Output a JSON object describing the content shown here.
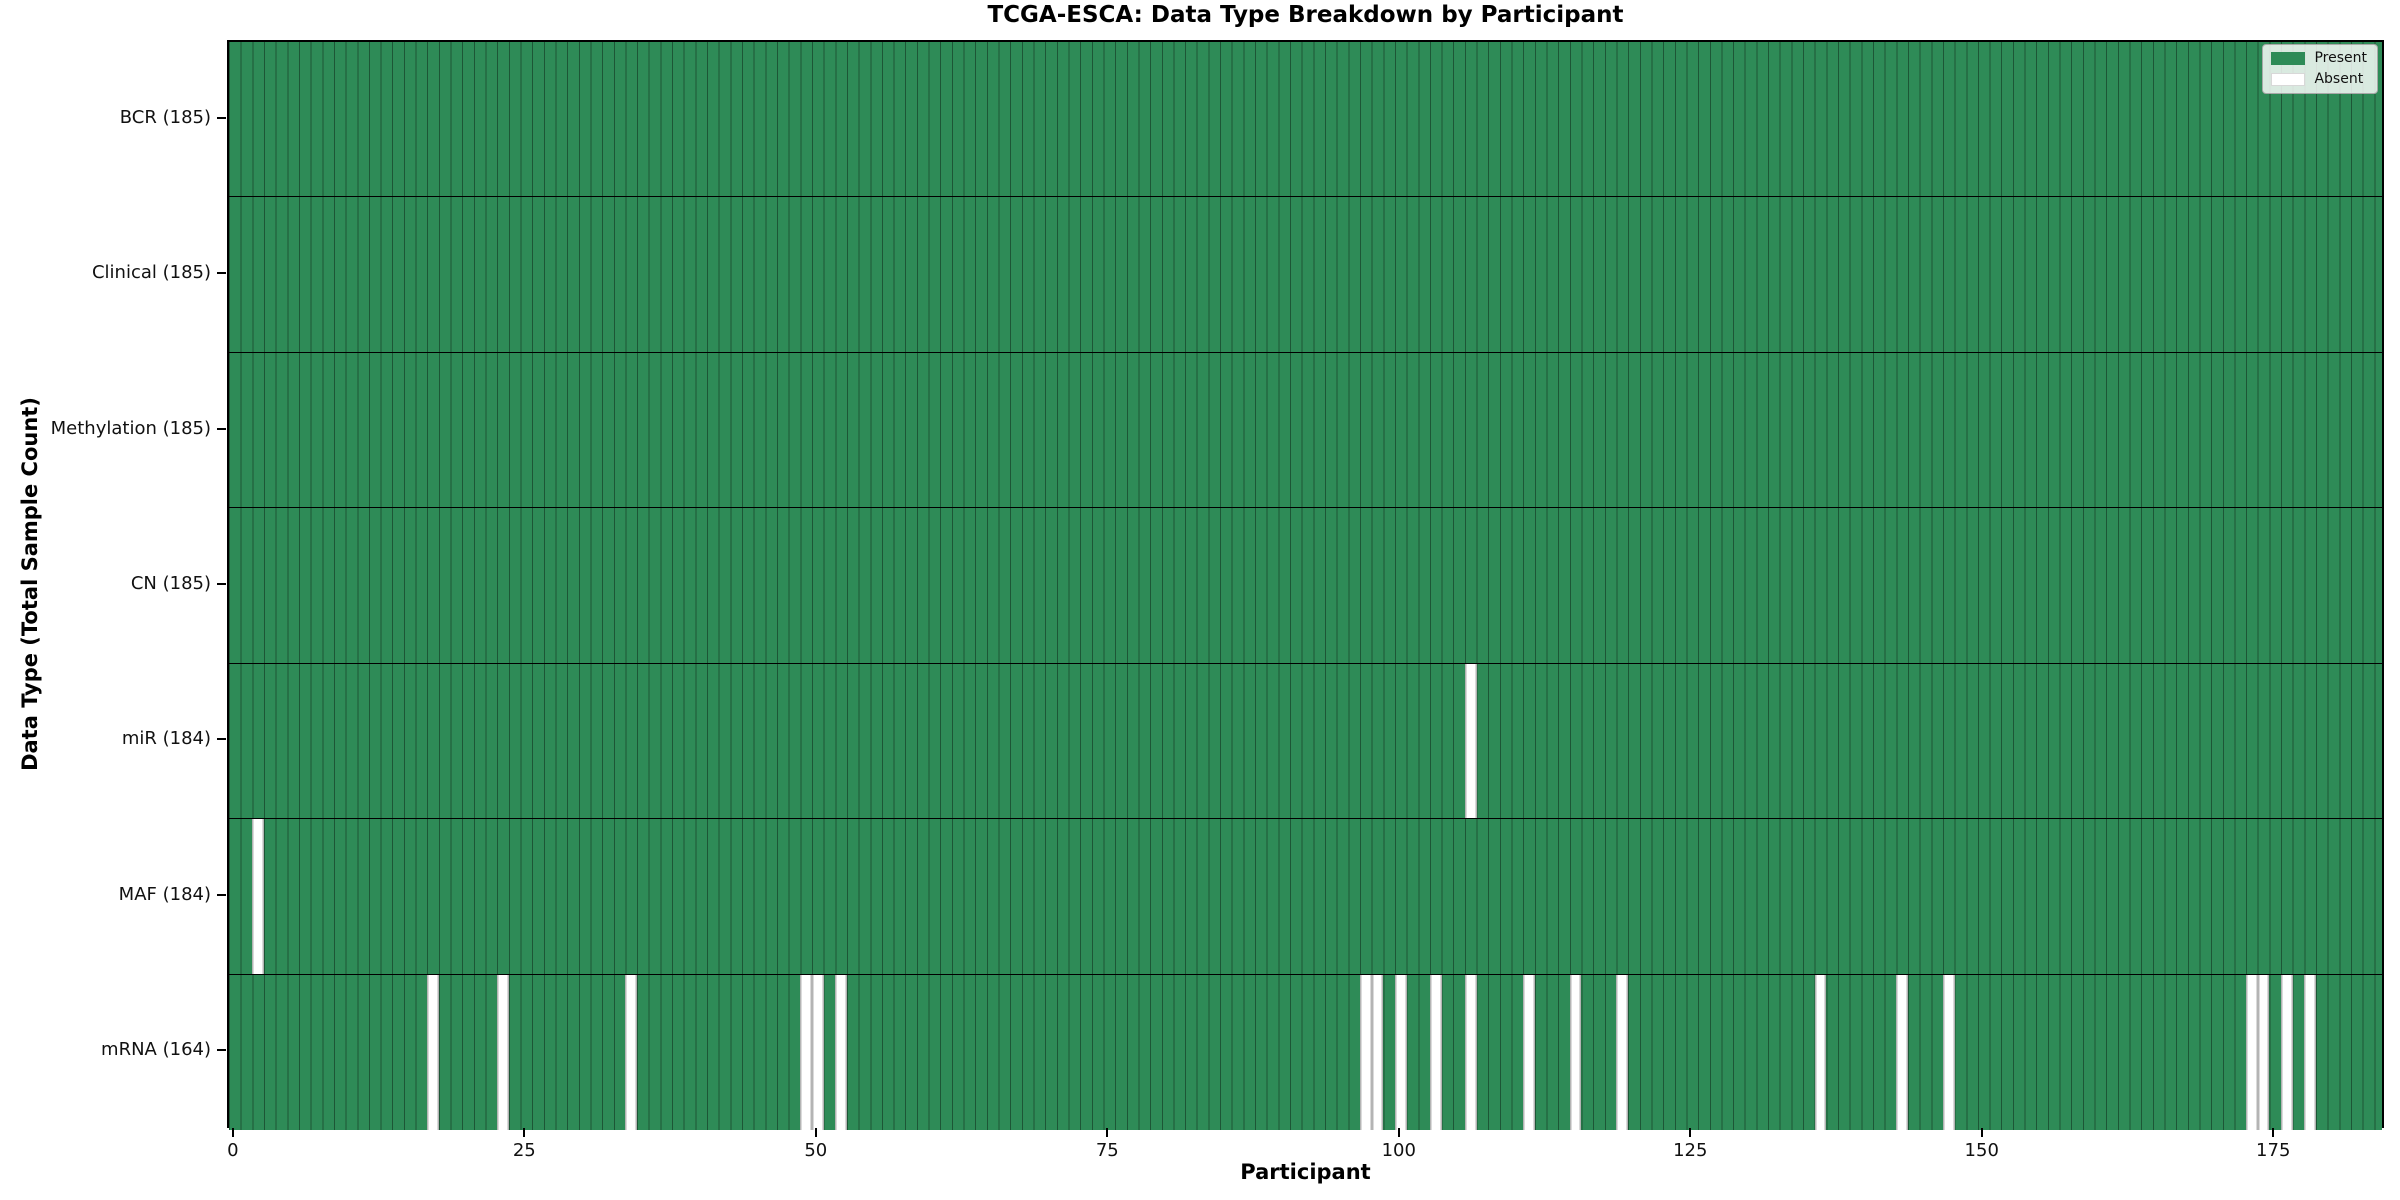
{
  "title": "TCGA-ESCA: Data Type Breakdown by Participant",
  "xlabel": "Participant",
  "ylabel": "Data Type (Total Sample Count)",
  "legend": {
    "present_label": "Present",
    "absent_label": "Absent"
  },
  "colors": {
    "present": "#2e8b57",
    "absent": "#ffffff",
    "cell_border": "rgba(0,0,0,0.38)",
    "row_separator": "#000000"
  },
  "chart_data": {
    "type": "heatmap",
    "title": "TCGA-ESCA: Data Type Breakdown by Participant",
    "xlabel": "Participant",
    "ylabel": "Data Type (Total Sample Count)",
    "legend": [
      "Present",
      "Absent"
    ],
    "legend_position": "upper right",
    "n_participants": 185,
    "x_ticks": [
      0,
      25,
      50,
      75,
      100,
      125,
      150,
      175
    ],
    "x_range": [
      0,
      184
    ],
    "rows": [
      {
        "label": "BCR (185)",
        "data_type": "BCR",
        "present_count": 185,
        "absent_participants": []
      },
      {
        "label": "Clinical (185)",
        "data_type": "Clinical",
        "present_count": 185,
        "absent_participants": []
      },
      {
        "label": "Methylation (185)",
        "data_type": "Methylation",
        "present_count": 185,
        "absent_participants": []
      },
      {
        "label": "CN (185)",
        "data_type": "CN",
        "present_count": 185,
        "absent_participants": []
      },
      {
        "label": "miR (184)",
        "data_type": "miR",
        "present_count": 184,
        "absent_participants": [
          106
        ]
      },
      {
        "label": "MAF (184)",
        "data_type": "MAF",
        "present_count": 184,
        "absent_participants": [
          2
        ]
      },
      {
        "label": "mRNA (164)",
        "data_type": "mRNA",
        "present_count": 164,
        "absent_participants": [
          17,
          23,
          34,
          49,
          50,
          52,
          97,
          98,
          100,
          103,
          106,
          111,
          115,
          119,
          136,
          143,
          147,
          173,
          174,
          176,
          178
        ]
      }
    ]
  }
}
